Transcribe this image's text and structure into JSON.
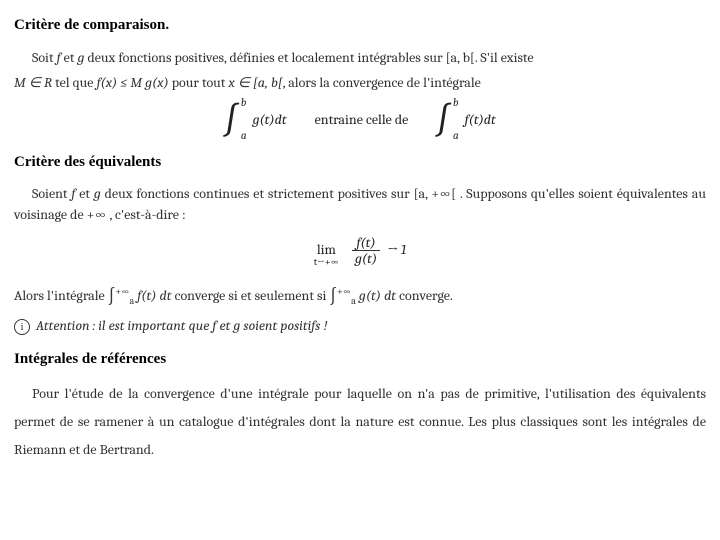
{
  "section1": {
    "title": "Critère de comparaison.",
    "p1a": "Soit ",
    "p1b": " et ",
    "p1c": " deux fonctions positives, définies et localement intégrables sur ",
    "p1d": ". S'il existe",
    "p2a": " tel que ",
    "p2b": " pour tout ",
    "p2c": ", alors la convergence de l'intégrale",
    "f": "f",
    "g": "g",
    "ab": "[a, b[",
    "MR": "M ∈ R",
    "ineq": "f(x) ≤ M g(x)",
    "xin": "x ∈ [a, b[",
    "int_upper": "b",
    "int_lower": "a",
    "int1_body": "g(t)dt",
    "entraine": "entraine celle de",
    "int2_body": "f(t)dt"
  },
  "section2": {
    "title": "Critère des équivalents",
    "p1a": "Soient ",
    "p1b": " et ",
    "p1c": " deux fonctions continues et strictement positives sur ",
    "p1d": " . Supposons qu'elles soient équivalentes au voisinage de ",
    "p1e": " , c'est-à-dire :",
    "f": "f",
    "g": "g",
    "dom": "[a, +∞[",
    "inf": "+∞",
    "lim": "lim",
    "lim_sub": "t→+∞",
    "frac_num": "f(t)",
    "frac_den": "g(t)",
    "arrow": "→ 1",
    "p2a": "Alors l'intégrale ",
    "p2b": " converge si et seulement si ",
    "p2c": " converge.",
    "inline_upper": "+∞",
    "inline_lower": "a",
    "inline_body1": "f(t) dt",
    "inline_body2": "g(t) dt",
    "attention_icon": "i",
    "attention": "Attention : il est important que f et g soient positifs !"
  },
  "section3": {
    "title": "Intégrales de références",
    "p1": "Pour l'étude de la convergence d'une intégrale pour laquelle on n'a pas de primitive, l'utilisation des équivalents permet de se ramener à un catalogue d'intégrales dont la nature est connue. Les plus classiques sont les intégrales de Riemann et de Bertrand."
  }
}
